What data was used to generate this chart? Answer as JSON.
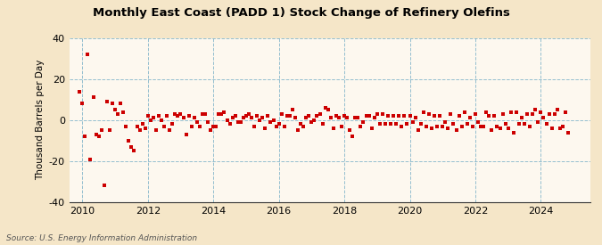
{
  "title": "Monthly East Coast (PADD 1) Stock Change of Refinery Olefins",
  "ylabel": "Thousand Barrels per Day",
  "source": "Source: U.S. Energy Information Administration",
  "background_color": "#f5e6c8",
  "plot_bg_color": "#fdf8ef",
  "marker_color": "#cc0000",
  "marker": "s",
  "marker_size": 3.5,
  "ylim": [
    -40,
    40
  ],
  "yticks": [
    -40,
    -20,
    0,
    20,
    40
  ],
  "xlim_start": 2009.6,
  "xlim_end": 2025.5,
  "xticks": [
    2010,
    2012,
    2014,
    2016,
    2018,
    2020,
    2022,
    2024
  ],
  "grid_color": "#7ab0c8",
  "grid_style": "--",
  "vgrid_color": "#7ab0c8",
  "vgrid_style": "--",
  "data": [
    [
      2009.917,
      14.0
    ],
    [
      2010.0,
      8.0
    ],
    [
      2010.083,
      -8.0
    ],
    [
      2010.167,
      32.0
    ],
    [
      2010.25,
      -19.0
    ],
    [
      2010.333,
      11.0
    ],
    [
      2010.417,
      -7.0
    ],
    [
      2010.5,
      -8.0
    ],
    [
      2010.583,
      -5.0
    ],
    [
      2010.667,
      -32.0
    ],
    [
      2010.75,
      9.0
    ],
    [
      2010.833,
      -5.0
    ],
    [
      2010.917,
      8.0
    ],
    [
      2011.0,
      5.0
    ],
    [
      2011.083,
      3.0
    ],
    [
      2011.167,
      8.0
    ],
    [
      2011.25,
      4.0
    ],
    [
      2011.333,
      -3.0
    ],
    [
      2011.417,
      -10.0
    ],
    [
      2011.5,
      -13.0
    ],
    [
      2011.583,
      -15.0
    ],
    [
      2011.667,
      -3.0
    ],
    [
      2011.75,
      -5.0
    ],
    [
      2011.833,
      -2.0
    ],
    [
      2011.917,
      -4.0
    ],
    [
      2012.0,
      2.0
    ],
    [
      2012.083,
      0.0
    ],
    [
      2012.167,
      1.0
    ],
    [
      2012.25,
      -5.0
    ],
    [
      2012.333,
      2.0
    ],
    [
      2012.417,
      0.0
    ],
    [
      2012.5,
      -3.0
    ],
    [
      2012.583,
      2.0
    ],
    [
      2012.667,
      -5.0
    ],
    [
      2012.75,
      -2.0
    ],
    [
      2012.833,
      3.0
    ],
    [
      2012.917,
      2.0
    ],
    [
      2013.0,
      3.0
    ],
    [
      2013.083,
      1.0
    ],
    [
      2013.167,
      -7.0
    ],
    [
      2013.25,
      2.0
    ],
    [
      2013.333,
      -3.0
    ],
    [
      2013.417,
      1.0
    ],
    [
      2013.5,
      -1.0
    ],
    [
      2013.583,
      -3.0
    ],
    [
      2013.667,
      3.0
    ],
    [
      2013.75,
      3.0
    ],
    [
      2013.833,
      -1.0
    ],
    [
      2013.917,
      -5.0
    ],
    [
      2014.0,
      -3.0
    ],
    [
      2014.083,
      -3.0
    ],
    [
      2014.167,
      3.0
    ],
    [
      2014.25,
      3.0
    ],
    [
      2014.333,
      4.0
    ],
    [
      2014.417,
      0.0
    ],
    [
      2014.5,
      -2.0
    ],
    [
      2014.583,
      1.0
    ],
    [
      2014.667,
      2.0
    ],
    [
      2014.75,
      -1.0
    ],
    [
      2014.833,
      -1.0
    ],
    [
      2014.917,
      1.0
    ],
    [
      2015.0,
      2.0
    ],
    [
      2015.083,
      3.0
    ],
    [
      2015.167,
      1.0
    ],
    [
      2015.25,
      -3.0
    ],
    [
      2015.333,
      2.0
    ],
    [
      2015.417,
      0.0
    ],
    [
      2015.5,
      1.0
    ],
    [
      2015.583,
      -4.0
    ],
    [
      2015.667,
      2.0
    ],
    [
      2015.75,
      -1.0
    ],
    [
      2015.833,
      0.0
    ],
    [
      2015.917,
      -3.0
    ],
    [
      2016.0,
      -2.0
    ],
    [
      2016.083,
      3.0
    ],
    [
      2016.167,
      -3.0
    ],
    [
      2016.25,
      2.0
    ],
    [
      2016.333,
      2.0
    ],
    [
      2016.417,
      5.0
    ],
    [
      2016.5,
      1.0
    ],
    [
      2016.583,
      -5.0
    ],
    [
      2016.667,
      -2.0
    ],
    [
      2016.75,
      -3.0
    ],
    [
      2016.833,
      1.0
    ],
    [
      2016.917,
      2.0
    ],
    [
      2017.0,
      -1.0
    ],
    [
      2017.083,
      0.0
    ],
    [
      2017.167,
      2.0
    ],
    [
      2017.25,
      3.0
    ],
    [
      2017.333,
      -2.0
    ],
    [
      2017.417,
      6.0
    ],
    [
      2017.5,
      5.0
    ],
    [
      2017.583,
      1.0
    ],
    [
      2017.667,
      -4.0
    ],
    [
      2017.75,
      2.0
    ],
    [
      2017.833,
      1.0
    ],
    [
      2017.917,
      -3.0
    ],
    [
      2018.0,
      2.0
    ],
    [
      2018.083,
      1.0
    ],
    [
      2018.167,
      -5.0
    ],
    [
      2018.25,
      -8.0
    ],
    [
      2018.333,
      1.0
    ],
    [
      2018.417,
      1.0
    ],
    [
      2018.5,
      -3.0
    ],
    [
      2018.583,
      -1.0
    ],
    [
      2018.667,
      2.0
    ],
    [
      2018.75,
      2.0
    ],
    [
      2018.833,
      -4.0
    ],
    [
      2018.917,
      1.0
    ],
    [
      2019.0,
      3.0
    ],
    [
      2019.083,
      -2.0
    ],
    [
      2019.167,
      3.0
    ],
    [
      2019.25,
      -2.0
    ],
    [
      2019.333,
      2.0
    ],
    [
      2019.417,
      -2.0
    ],
    [
      2019.5,
      2.0
    ],
    [
      2019.583,
      -2.0
    ],
    [
      2019.667,
      2.0
    ],
    [
      2019.75,
      -3.0
    ],
    [
      2019.833,
      2.0
    ],
    [
      2019.917,
      -2.0
    ],
    [
      2020.0,
      2.0
    ],
    [
      2020.083,
      -1.0
    ],
    [
      2020.167,
      1.0
    ],
    [
      2020.25,
      -5.0
    ],
    [
      2020.333,
      -2.0
    ],
    [
      2020.417,
      4.0
    ],
    [
      2020.5,
      -3.0
    ],
    [
      2020.583,
      3.0
    ],
    [
      2020.667,
      -4.0
    ],
    [
      2020.75,
      2.0
    ],
    [
      2020.833,
      -3.0
    ],
    [
      2020.917,
      2.0
    ],
    [
      2021.0,
      -3.0
    ],
    [
      2021.083,
      -1.0
    ],
    [
      2021.167,
      -4.0
    ],
    [
      2021.25,
      3.0
    ],
    [
      2021.333,
      -2.0
    ],
    [
      2021.417,
      -5.0
    ],
    [
      2021.5,
      2.0
    ],
    [
      2021.583,
      -3.0
    ],
    [
      2021.667,
      4.0
    ],
    [
      2021.75,
      -2.0
    ],
    [
      2021.833,
      1.0
    ],
    [
      2021.917,
      -3.0
    ],
    [
      2022.0,
      3.0
    ],
    [
      2022.083,
      -1.0
    ],
    [
      2022.167,
      -3.0
    ],
    [
      2022.25,
      -3.0
    ],
    [
      2022.333,
      4.0
    ],
    [
      2022.417,
      2.0
    ],
    [
      2022.5,
      -5.0
    ],
    [
      2022.583,
      2.0
    ],
    [
      2022.667,
      -3.0
    ],
    [
      2022.75,
      -4.0
    ],
    [
      2022.833,
      3.0
    ],
    [
      2022.917,
      -2.0
    ],
    [
      2023.0,
      -4.0
    ],
    [
      2023.083,
      4.0
    ],
    [
      2023.167,
      -6.0
    ],
    [
      2023.25,
      4.0
    ],
    [
      2023.333,
      -2.0
    ],
    [
      2023.417,
      1.0
    ],
    [
      2023.5,
      -2.0
    ],
    [
      2023.583,
      3.0
    ],
    [
      2023.667,
      -3.0
    ],
    [
      2023.75,
      3.0
    ],
    [
      2023.833,
      5.0
    ],
    [
      2023.917,
      -1.0
    ],
    [
      2024.0,
      4.0
    ],
    [
      2024.083,
      1.0
    ],
    [
      2024.167,
      -2.0
    ],
    [
      2024.25,
      3.0
    ],
    [
      2024.333,
      -4.0
    ],
    [
      2024.417,
      3.0
    ],
    [
      2024.5,
      5.0
    ],
    [
      2024.583,
      -4.0
    ],
    [
      2024.667,
      -3.0
    ],
    [
      2024.75,
      4.0
    ],
    [
      2024.833,
      -6.0
    ]
  ]
}
